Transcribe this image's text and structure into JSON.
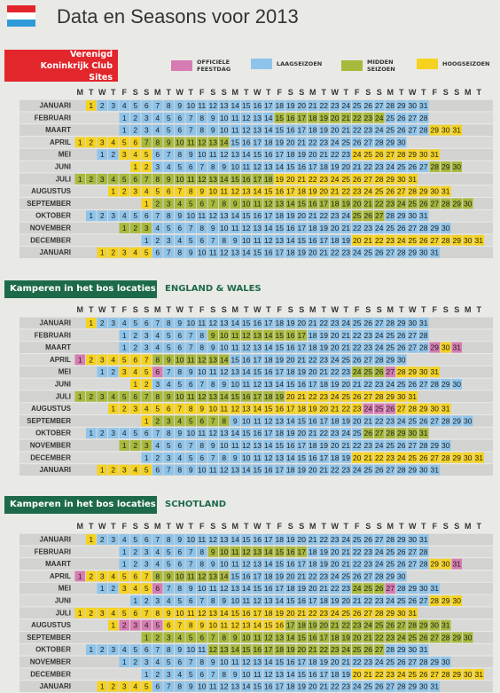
{
  "header": {
    "title": "Data en Seasons voor 2013"
  },
  "legend": [
    {
      "label": "OFFICIELE FEESTDAG",
      "color": "#d77cb2"
    },
    {
      "label": "LAAGSEIZOEN",
      "color": "#8fc4ea"
    },
    {
      "label": "MIDDEN SEIZOEN",
      "color": "#a9b93c"
    },
    {
      "label": "HOOGSEIZOEN",
      "color": "#f5d21f"
    }
  ],
  "weekdays": [
    "M",
    "T",
    "W",
    "T",
    "F",
    "S",
    "S"
  ],
  "months": [
    {
      "name": "JANUARI",
      "days": [
        1,
        2,
        3,
        4,
        5,
        6,
        7,
        8,
        9,
        10,
        11,
        12,
        13,
        14,
        15,
        16,
        17,
        18,
        19,
        20,
        21,
        22,
        23,
        24,
        25,
        26,
        27,
        28,
        29,
        30,
        31
      ]
    },
    {
      "name": "FEBRUARI",
      "days": [
        1,
        2,
        3,
        4,
        5,
        6,
        7,
        8,
        9,
        10,
        11,
        12,
        13,
        14,
        15,
        16,
        17,
        18,
        19,
        20,
        21,
        22,
        23,
        24,
        25,
        26,
        27,
        28
      ]
    },
    {
      "name": "MAART",
      "days": [
        1,
        2,
        3,
        4,
        5,
        6,
        7,
        8,
        9,
        10,
        11,
        12,
        13,
        14,
        15,
        16,
        17,
        18,
        19,
        20,
        21,
        22,
        23,
        24,
        25,
        26,
        27,
        28,
        29,
        30,
        31
      ]
    },
    {
      "name": "APRIL",
      "days": [
        1,
        2,
        3,
        4,
        5,
        6,
        7,
        8,
        9,
        10,
        11,
        12,
        13,
        14,
        15,
        16,
        17,
        18,
        19,
        20,
        21,
        22,
        23,
        24,
        25,
        26,
        27,
        28,
        29,
        30
      ]
    },
    {
      "name": "MEI",
      "days": [
        1,
        2,
        3,
        4,
        5,
        6,
        7,
        8,
        9,
        10,
        11,
        12,
        13,
        14,
        15,
        16,
        17,
        18,
        19,
        20,
        21,
        22,
        23,
        24,
        25,
        26,
        27,
        28,
        29,
        30,
        31
      ]
    },
    {
      "name": "JUNI",
      "days": [
        1,
        2,
        3,
        4,
        5,
        6,
        7,
        8,
        9,
        10,
        11,
        12,
        13,
        14,
        15,
        16,
        17,
        18,
        19,
        20,
        21,
        22,
        23,
        24,
        25,
        26,
        27,
        28,
        29,
        30
      ]
    },
    {
      "name": "JULI",
      "days": [
        1,
        2,
        3,
        4,
        5,
        6,
        7,
        8,
        9,
        10,
        11,
        12,
        13,
        14,
        15,
        16,
        17,
        18,
        19,
        20,
        21,
        22,
        23,
        24,
        25,
        26,
        27,
        28,
        29,
        30,
        31
      ]
    },
    {
      "name": "AUGUSTUS",
      "days": [
        1,
        2,
        3,
        4,
        5,
        6,
        7,
        8,
        9,
        10,
        11,
        12,
        13,
        14,
        15,
        16,
        17,
        18,
        19,
        20,
        21,
        22,
        23,
        24,
        25,
        26,
        27,
        28,
        29,
        30,
        31
      ]
    },
    {
      "name": "SEPTEMBER",
      "days": [
        1,
        2,
        3,
        4,
        5,
        6,
        7,
        8,
        9,
        10,
        11,
        12,
        13,
        14,
        15,
        16,
        17,
        18,
        19,
        20,
        21,
        22,
        23,
        24,
        25,
        26,
        27,
        28,
        29,
        30
      ]
    },
    {
      "name": "OKTOBER",
      "days": [
        1,
        2,
        3,
        4,
        5,
        6,
        7,
        8,
        9,
        10,
        11,
        12,
        13,
        14,
        15,
        16,
        17,
        18,
        19,
        20,
        21,
        22,
        23,
        24,
        25,
        26,
        27,
        28,
        29,
        30,
        31
      ]
    },
    {
      "name": "NOVEMBER",
      "days": [
        1,
        2,
        3,
        4,
        5,
        6,
        7,
        8,
        9,
        10,
        11,
        12,
        13,
        14,
        15,
        16,
        17,
        18,
        19,
        20,
        21,
        22,
        23,
        24,
        25,
        26,
        27,
        28,
        29,
        30
      ]
    },
    {
      "name": "DECEMBER",
      "days": [
        1,
        2,
        3,
        4,
        5,
        6,
        7,
        8,
        9,
        10,
        11,
        12,
        13,
        14,
        15,
        16,
        17,
        18,
        19,
        20,
        21,
        22,
        23,
        24,
        25,
        26,
        27,
        28,
        29,
        30,
        31
      ]
    },
    {
      "name": "JANUARI",
      "days": [
        1,
        2,
        3,
        4,
        5,
        6,
        7,
        8,
        9,
        10,
        11,
        12,
        13,
        14,
        15,
        16,
        17,
        18,
        19,
        20,
        21,
        22,
        23,
        24,
        25,
        26,
        27,
        28,
        29,
        30,
        31
      ]
    }
  ],
  "sections": [
    {
      "title": "Verenigd Koninkrijk Club Sites",
      "seasons": [
        "3111111111111111111111111111111",
        "1111111111111122222222221111",
        "1111111111111111111111111111333",
        "333333222222221111111111111111",
        "1133311111111111111111133333333",
        "331111111111111111111111111222",
        "2222222222222222223333333333333",
        "3333333333333333333333333333333",
        "322222222222222222222222222222",
        "1111111111111111111111112221111",
        "222111111111111111111111111111",
        "1111111111111111111333333333333",
        "3333311111111111111111111111111"
      ]
    },
    {
      "title": "Kamperen in het bos locaties",
      "region": "ENGLAND & WALES",
      "seasons": [
        "3111111111111111111111111111111",
        "1111111122222222211111111111",
        "1111111111111111111111111111030",
        "033333322222221111111111111111",
        "1133301111111111111111122203333",
        "331111111111111111111111111111",
        "2222222222222222222333333333333",
        "3333333333333333333333300033333",
        "322222221111111111111111111111",
        "1111111111111111111111111222222",
        "222111111111111111111111111111",
        "1111111111111111111333333333333",
        "3333311111111111111111111111111"
      ]
    },
    {
      "title": "Kamperen in het bos locaties",
      "region": "SCHOTLAND",
      "seasons": [
        "3111111111111111111111111111111",
        "1111111122222222211111111111",
        "1111111111111111111111111111330",
        "033333322222221111111111111111",
        "1133301111111111111111122201111",
        "111111111111111111111111111333",
        "3333333333333333333333333333333",
        "3000033333333333222222222222222",
        "222222222222222222222222222222",
        "1111111111122222222222222221111",
        "111111111111111111111111111111",
        "1111111111111111111333333333333",
        "3333311111111111111111111111111"
      ]
    }
  ]
}
